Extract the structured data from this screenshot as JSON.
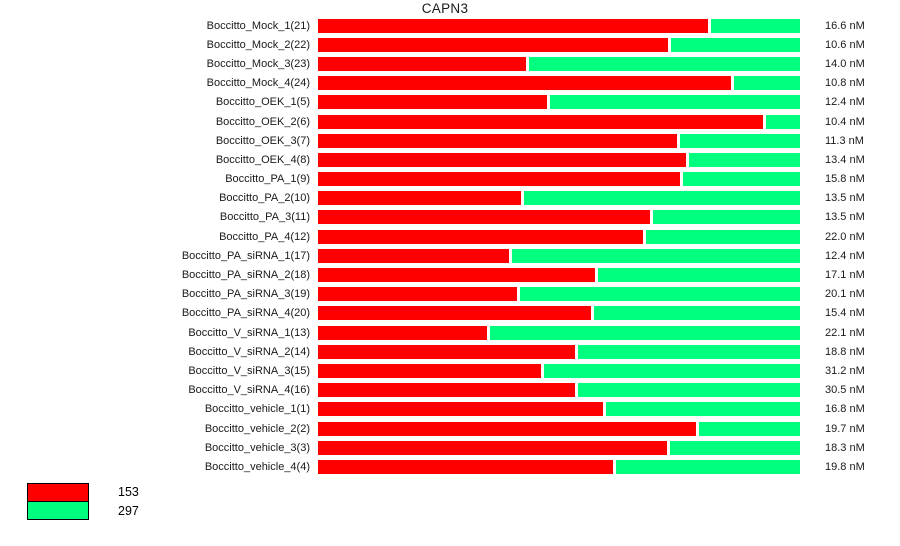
{
  "title": "CAPN3",
  "colors": {
    "background": "#ffffff",
    "text": "#1a1a1a",
    "probe_153": "#ff0000",
    "probe_297": "#00ff7f"
  },
  "legend": {
    "entries": [
      {
        "label": "153",
        "color_key": "probe_153"
      },
      {
        "label": "297",
        "color_key": "probe_297"
      }
    ]
  },
  "chart_data": {
    "type": "bar",
    "orientation": "horizontal",
    "stacked": true,
    "stacking": "percent",
    "title": "CAPN3",
    "unit": "nM",
    "grid": false,
    "legend_position": "bottom-left",
    "series_legend": [
      "153",
      "297"
    ],
    "note": "Each bar is a 100% stacked split between probe 153 (red) and probe 297 (green); total concentration annotated at right",
    "rows": [
      {
        "label": "Boccitto_Mock_1(21)",
        "red_pct": 80.9,
        "green_pct": 19.1,
        "total_nM": 16.6,
        "total": "16.6 nM"
      },
      {
        "label": "Boccitto_Mock_2(22)",
        "red_pct": 72.6,
        "green_pct": 27.4,
        "total_nM": 10.6,
        "total": "10.6 nM"
      },
      {
        "label": "Boccitto_Mock_3(23)",
        "red_pct": 43.1,
        "green_pct": 56.9,
        "total_nM": 14.0,
        "total": "14.0 nM"
      },
      {
        "label": "Boccitto_Mock_4(24)",
        "red_pct": 85.7,
        "green_pct": 14.3,
        "total_nM": 10.8,
        "total": "10.8 nM"
      },
      {
        "label": "Boccitto_OEK_1(5)",
        "red_pct": 47.5,
        "green_pct": 52.5,
        "total_nM": 12.4,
        "total": "12.4 nM"
      },
      {
        "label": "Boccitto_OEK_2(6)",
        "red_pct": 92.3,
        "green_pct": 7.7,
        "total_nM": 10.4,
        "total": "10.4 nM"
      },
      {
        "label": "Boccitto_OEK_3(7)",
        "red_pct": 74.5,
        "green_pct": 25.5,
        "total_nM": 11.3,
        "total": "11.3 nM"
      },
      {
        "label": "Boccitto_OEK_4(8)",
        "red_pct": 76.3,
        "green_pct": 23.7,
        "total_nM": 13.4,
        "total": "13.4 nM"
      },
      {
        "label": "Boccitto_PA_1(9)",
        "red_pct": 75.1,
        "green_pct": 24.9,
        "total_nM": 15.8,
        "total": "15.8 nM"
      },
      {
        "label": "Boccitto_PA_2(10)",
        "red_pct": 42.1,
        "green_pct": 57.9,
        "total_nM": 13.5,
        "total": "13.5 nM"
      },
      {
        "label": "Boccitto_PA_3(11)",
        "red_pct": 68.9,
        "green_pct": 31.1,
        "total_nM": 13.5,
        "total": "13.5 nM"
      },
      {
        "label": "Boccitto_PA_4(12)",
        "red_pct": 67.4,
        "green_pct": 32.6,
        "total_nM": 22.0,
        "total": "22.0 nM"
      },
      {
        "label": "Boccitto_PA_siRNA_1(17)",
        "red_pct": 39.6,
        "green_pct": 60.4,
        "total_nM": 12.4,
        "total": "12.4 nM"
      },
      {
        "label": "Boccitto_PA_siRNA_2(18)",
        "red_pct": 57.5,
        "green_pct": 42.5,
        "total_nM": 17.1,
        "total": "17.1 nM"
      },
      {
        "label": "Boccitto_PA_siRNA_3(19)",
        "red_pct": 41.3,
        "green_pct": 58.7,
        "total_nM": 20.1,
        "total": "20.1 nM"
      },
      {
        "label": "Boccitto_PA_siRNA_4(20)",
        "red_pct": 56.6,
        "green_pct": 43.4,
        "total_nM": 15.4,
        "total": "15.4 nM"
      },
      {
        "label": "Boccitto_V_siRNA_1(13)",
        "red_pct": 35.1,
        "green_pct": 64.9,
        "total_nM": 22.1,
        "total": "22.1 nM"
      },
      {
        "label": "Boccitto_V_siRNA_2(14)",
        "red_pct": 53.3,
        "green_pct": 46.7,
        "total_nM": 18.8,
        "total": "18.8 nM"
      },
      {
        "label": "Boccitto_V_siRNA_3(15)",
        "red_pct": 46.3,
        "green_pct": 53.7,
        "total_nM": 31.2,
        "total": "31.2 nM"
      },
      {
        "label": "Boccitto_V_siRNA_4(16)",
        "red_pct": 53.3,
        "green_pct": 46.7,
        "total_nM": 30.5,
        "total": "30.5 nM"
      },
      {
        "label": "Boccitto_vehicle_1(1)",
        "red_pct": 59.1,
        "green_pct": 40.9,
        "total_nM": 16.8,
        "total": "16.8 nM"
      },
      {
        "label": "Boccitto_vehicle_2(2)",
        "red_pct": 78.4,
        "green_pct": 21.6,
        "total_nM": 19.7,
        "total": "19.7 nM"
      },
      {
        "label": "Boccitto_vehicle_3(3)",
        "red_pct": 72.4,
        "green_pct": 27.6,
        "total_nM": 18.3,
        "total": "18.3 nM"
      },
      {
        "label": "Boccitto_vehicle_4(4)",
        "red_pct": 61.2,
        "green_pct": 38.8,
        "total_nM": 19.8,
        "total": "19.8 nM"
      }
    ]
  }
}
